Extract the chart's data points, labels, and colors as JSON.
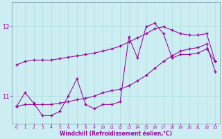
{
  "xlabel": "Windchill (Refroidissement éolien,°C)",
  "background_color": "#cceef2",
  "grid_color": "#aadddd",
  "line_color": "#990099",
  "hours": [
    0,
    1,
    2,
    3,
    4,
    5,
    6,
    7,
    8,
    9,
    10,
    11,
    12,
    13,
    14,
    15,
    16,
    17,
    18,
    19,
    20,
    21,
    22,
    23
  ],
  "line1": [
    10.85,
    11.05,
    10.9,
    10.72,
    10.72,
    10.78,
    11.0,
    11.25,
    10.88,
    10.82,
    10.88,
    10.88,
    10.92,
    11.85,
    11.55,
    12.0,
    12.05,
    11.9,
    11.55,
    11.6,
    11.6,
    11.62,
    11.68,
    11.5
  ],
  "line2": [
    11.45,
    11.5,
    11.52,
    11.52,
    11.52,
    11.54,
    11.56,
    11.58,
    11.6,
    11.62,
    11.65,
    11.68,
    11.72,
    11.78,
    11.84,
    11.9,
    11.97,
    12.0,
    11.95,
    11.9,
    11.88,
    11.88,
    11.9,
    11.5
  ],
  "line3": [
    10.85,
    10.88,
    10.88,
    10.88,
    10.88,
    10.9,
    10.92,
    10.95,
    10.97,
    11.0,
    11.05,
    11.08,
    11.1,
    11.15,
    11.22,
    11.3,
    11.4,
    11.5,
    11.58,
    11.65,
    11.68,
    11.7,
    11.75,
    11.35
  ],
  "ylim": [
    10.6,
    12.35
  ],
  "yticks": [
    11,
    12
  ],
  "xtick_fontsize": 4.2,
  "ytick_fontsize": 6,
  "xlabel_fontsize": 5.5,
  "marker": "+",
  "markersize": 2.5,
  "linewidth": 0.75,
  "figsize": [
    3.2,
    2.0
  ],
  "dpi": 100
}
